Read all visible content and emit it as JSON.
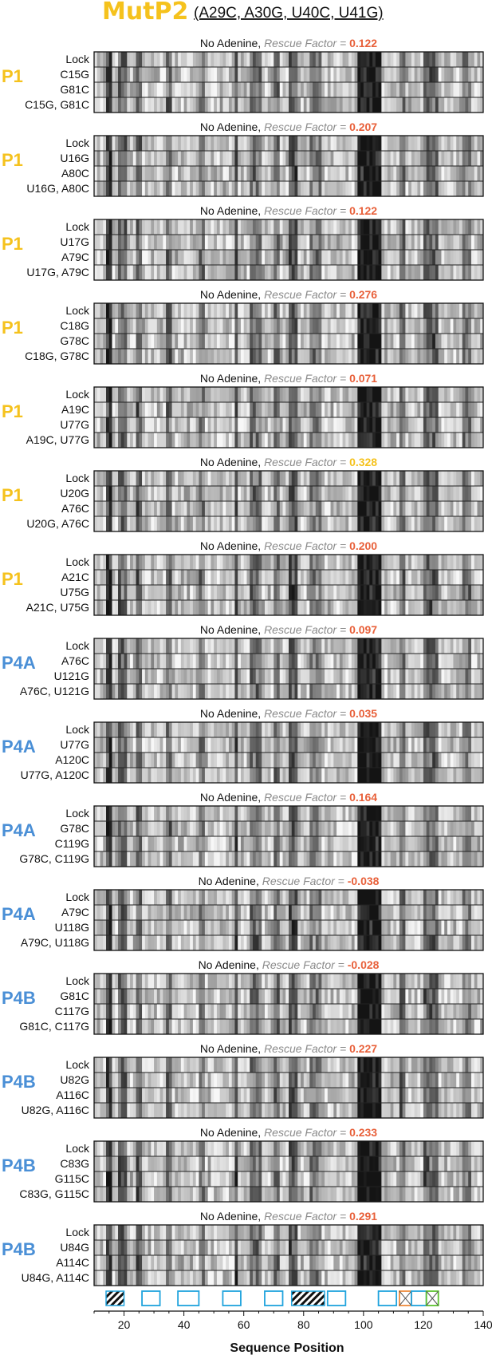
{
  "title": "MutP2",
  "subtitle": "(A29C, A30G, U40C, U41G)",
  "xlabel": "Sequence Position",
  "colors": {
    "title": "#f5c21d",
    "p1": "#f5c21d",
    "p4": "#4a8fd6",
    "rescue_label": "#8a8a8a",
    "rescue_value_red": "#e8603a",
    "rescue_value_yellow": "#f5c21d",
    "box_blue": "#1fa3dd",
    "box_orange": "#ef8a3a",
    "box_green": "#5cc22d"
  },
  "chart_data": {
    "type": "heatmap",
    "xlim": [
      10,
      140
    ],
    "xticks": [
      20,
      40,
      60,
      80,
      100,
      120,
      140
    ],
    "xlabel": "Sequence Position",
    "panels": [
      {
        "group": "P1",
        "header": "No Adenine,",
        "rf_label": "Rescue Factor =",
        "rf": "0.122",
        "rf_color": "red",
        "rows": [
          "Lock",
          "C15G",
          "G81C",
          "C15G, G81C"
        ]
      },
      {
        "group": "P1",
        "header": "No Adenine,",
        "rf_label": "Rescue Factor =",
        "rf": "0.207",
        "rf_color": "red",
        "rows": [
          "Lock",
          "U16G",
          "A80C",
          "U16G, A80C"
        ]
      },
      {
        "group": "P1",
        "header": "No Adenine,",
        "rf_label": "Rescue Factor =",
        "rf": "0.122",
        "rf_color": "red",
        "rows": [
          "Lock",
          "U17G",
          "A79C",
          "U17G, A79C"
        ]
      },
      {
        "group": "P1",
        "header": "No Adenine,",
        "rf_label": "Rescue Factor =",
        "rf": "0.276",
        "rf_color": "red",
        "rows": [
          "Lock",
          "C18G",
          "G78C",
          "C18G, G78C"
        ]
      },
      {
        "group": "P1",
        "header": "No Adenine,",
        "rf_label": "Rescue Factor =",
        "rf": "0.071",
        "rf_color": "red",
        "rows": [
          "Lock",
          "A19C",
          "U77G",
          "A19C, U77G"
        ]
      },
      {
        "group": "P1",
        "header": "No Adenine,",
        "rf_label": "Rescue Factor =",
        "rf": "0.328",
        "rf_color": "yellow",
        "rows": [
          "Lock",
          "U20G",
          "A76C",
          "U20G, A76C"
        ]
      },
      {
        "group": "P1",
        "header": "No Adenine,",
        "rf_label": "Rescue Factor =",
        "rf": "0.200",
        "rf_color": "red",
        "rows": [
          "Lock",
          "A21C",
          "U75G",
          "A21C, U75G"
        ]
      },
      {
        "group": "P4A",
        "header": "No Adenine,",
        "rf_label": "Rescue Factor =",
        "rf": "0.097",
        "rf_color": "red",
        "rows": [
          "Lock",
          "A76C",
          "U121G",
          "A76C, U121G"
        ]
      },
      {
        "group": "P4A",
        "header": "No Adenine,",
        "rf_label": "Rescue Factor =",
        "rf": "0.035",
        "rf_color": "red",
        "rows": [
          "Lock",
          "U77G",
          "A120C",
          "U77G, A120C"
        ]
      },
      {
        "group": "P4A",
        "header": "No Adenine,",
        "rf_label": "Rescue Factor =",
        "rf": "0.164",
        "rf_color": "red",
        "rows": [
          "Lock",
          "G78C",
          "C119G",
          "G78C, C119G"
        ]
      },
      {
        "group": "P4A",
        "header": "No Adenine,",
        "rf_label": "Rescue Factor =",
        "rf": "-0.038",
        "rf_color": "red",
        "rows": [
          "Lock",
          "A79C",
          "U118G",
          "A79C, U118G"
        ]
      },
      {
        "group": "P4B",
        "header": "No Adenine,",
        "rf_label": "Rescue Factor =",
        "rf": "-0.028",
        "rf_color": "red",
        "rows": [
          "Lock",
          "G81C",
          "C117G",
          "G81C, C117G"
        ]
      },
      {
        "group": "P4B",
        "header": "No Adenine,",
        "rf_label": "Rescue Factor =",
        "rf": "0.227",
        "rf_color": "red",
        "rows": [
          "Lock",
          "U82G",
          "A116C",
          "U82G, A116C"
        ]
      },
      {
        "group": "P4B",
        "header": "No Adenine,",
        "rf_label": "Rescue Factor =",
        "rf": "0.233",
        "rf_color": "red",
        "rows": [
          "Lock",
          "C83G",
          "G115C",
          "C83G, G115C"
        ]
      },
      {
        "group": "P4B",
        "header": "No Adenine,",
        "rf_label": "Rescue Factor =",
        "rf": "0.291",
        "rf_color": "red",
        "rows": [
          "Lock",
          "U84G",
          "A114C",
          "U84G, A114C"
        ]
      }
    ],
    "dark_regions": [
      {
        "start": 14,
        "end": 16,
        "level": 0.75
      },
      {
        "start": 18,
        "end": 21,
        "level": 0.6
      },
      {
        "start": 24,
        "end": 26,
        "level": 0.6
      },
      {
        "start": 34,
        "end": 36,
        "level": 0.55
      },
      {
        "start": 45,
        "end": 47,
        "level": 0.5
      },
      {
        "start": 57,
        "end": 58,
        "level": 0.7
      },
      {
        "start": 62,
        "end": 66,
        "level": 0.55
      },
      {
        "start": 70,
        "end": 72,
        "level": 0.55
      },
      {
        "start": 75,
        "end": 78,
        "level": 0.65
      },
      {
        "start": 82,
        "end": 86,
        "level": 0.5
      },
      {
        "start": 98,
        "end": 106,
        "level": 0.9
      },
      {
        "start": 112,
        "end": 114,
        "level": 0.55
      },
      {
        "start": 120,
        "end": 125,
        "level": 0.6
      },
      {
        "start": 133,
        "end": 136,
        "level": 0.5
      }
    ],
    "annotation_boxes": [
      {
        "start": 14,
        "end": 20,
        "style": "hatch-black"
      },
      {
        "start": 26,
        "end": 32,
        "style": "blue"
      },
      {
        "start": 38,
        "end": 45,
        "style": "blue"
      },
      {
        "start": 53,
        "end": 59,
        "style": "blue"
      },
      {
        "start": 67,
        "end": 73,
        "style": "blue"
      },
      {
        "start": 76,
        "end": 87,
        "style": "hatch-black"
      },
      {
        "start": 88,
        "end": 94,
        "style": "blue"
      },
      {
        "start": 105,
        "end": 111,
        "style": "blue"
      },
      {
        "start": 112,
        "end": 116,
        "style": "cross-orange"
      },
      {
        "start": 116,
        "end": 121,
        "style": "blue"
      },
      {
        "start": 121,
        "end": 125,
        "style": "cross-green"
      }
    ]
  }
}
